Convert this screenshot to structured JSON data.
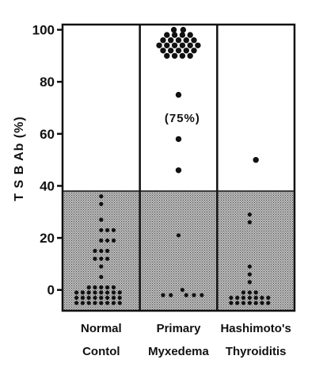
{
  "chart_data": {
    "type": "scatter",
    "ylabel": "T S B Ab (%)",
    "ylim": [
      -8,
      102
    ],
    "yticks": [
      "0",
      "20",
      "40",
      "60",
      "80",
      "100"
    ],
    "shaded_band": [
      -8,
      38
    ],
    "categories": [
      {
        "line1": "Normal",
        "line2": "Contol"
      },
      {
        "line1": "Primary",
        "line2": "Myxedema"
      },
      {
        "line1": "Hashimoto's",
        "line2": "Thyroiditis"
      }
    ],
    "annotations": [
      {
        "text": "(75%)",
        "category": 1,
        "y": 66
      }
    ],
    "series": [
      {
        "category": 0,
        "points": [
          {
            "x": 0.0,
            "y": 36
          },
          {
            "x": 0.0,
            "y": 33
          },
          {
            "x": 0.0,
            "y": 27
          },
          {
            "x": 0.0,
            "y": 23
          },
          {
            "x": 0.08,
            "y": 23
          },
          {
            "x": 0.16,
            "y": 23
          },
          {
            "x": 0.0,
            "y": 19
          },
          {
            "x": 0.08,
            "y": 19
          },
          {
            "x": 0.16,
            "y": 19
          },
          {
            "x": -0.08,
            "y": 15
          },
          {
            "x": 0.0,
            "y": 15
          },
          {
            "x": 0.08,
            "y": 15
          },
          {
            "x": -0.08,
            "y": 12
          },
          {
            "x": 0.0,
            "y": 12
          },
          {
            "x": 0.08,
            "y": 12
          },
          {
            "x": 0.0,
            "y": 9
          },
          {
            "x": 0.0,
            "y": 5
          },
          {
            "x": -0.16,
            "y": 1
          },
          {
            "x": -0.08,
            "y": 1
          },
          {
            "x": 0.0,
            "y": 1
          },
          {
            "x": 0.08,
            "y": 1
          },
          {
            "x": 0.16,
            "y": 1
          },
          {
            "x": -0.32,
            "y": -1
          },
          {
            "x": -0.24,
            "y": -1
          },
          {
            "x": -0.16,
            "y": -1
          },
          {
            "x": -0.08,
            "y": -1
          },
          {
            "x": 0.0,
            "y": -1
          },
          {
            "x": 0.08,
            "y": -1
          },
          {
            "x": 0.16,
            "y": -1
          },
          {
            "x": 0.24,
            "y": -1
          },
          {
            "x": -0.32,
            "y": -3
          },
          {
            "x": -0.24,
            "y": -3
          },
          {
            "x": -0.16,
            "y": -3
          },
          {
            "x": -0.08,
            "y": -3
          },
          {
            "x": 0.0,
            "y": -3
          },
          {
            "x": 0.08,
            "y": -3
          },
          {
            "x": 0.16,
            "y": -3
          },
          {
            "x": 0.24,
            "y": -3
          },
          {
            "x": -0.32,
            "y": -5
          },
          {
            "x": -0.24,
            "y": -5
          },
          {
            "x": -0.16,
            "y": -5
          },
          {
            "x": -0.08,
            "y": -5
          },
          {
            "x": 0.0,
            "y": -5
          },
          {
            "x": 0.08,
            "y": -5
          },
          {
            "x": 0.16,
            "y": -5
          },
          {
            "x": 0.24,
            "y": -5
          }
        ]
      },
      {
        "category": 1,
        "points": [
          {
            "x": -0.06,
            "y": 100
          },
          {
            "x": 0.06,
            "y": 100
          },
          {
            "x": -0.15,
            "y": 98
          },
          {
            "x": -0.05,
            "y": 98
          },
          {
            "x": 0.05,
            "y": 98
          },
          {
            "x": 0.15,
            "y": 98
          },
          {
            "x": -0.2,
            "y": 96
          },
          {
            "x": -0.1,
            "y": 96
          },
          {
            "x": 0.0,
            "y": 96
          },
          {
            "x": 0.1,
            "y": 96
          },
          {
            "x": 0.2,
            "y": 96
          },
          {
            "x": -0.25,
            "y": 94
          },
          {
            "x": -0.15,
            "y": 94
          },
          {
            "x": -0.05,
            "y": 94
          },
          {
            "x": 0.05,
            "y": 94
          },
          {
            "x": 0.15,
            "y": 94
          },
          {
            "x": 0.25,
            "y": 94
          },
          {
            "x": -0.2,
            "y": 92
          },
          {
            "x": -0.1,
            "y": 92
          },
          {
            "x": 0.0,
            "y": 92
          },
          {
            "x": 0.1,
            "y": 92
          },
          {
            "x": 0.2,
            "y": 92
          },
          {
            "x": -0.15,
            "y": 90
          },
          {
            "x": -0.05,
            "y": 90
          },
          {
            "x": 0.05,
            "y": 90
          },
          {
            "x": 0.15,
            "y": 90
          },
          {
            "x": 0.0,
            "y": 75
          },
          {
            "x": 0.0,
            "y": 58
          },
          {
            "x": 0.0,
            "y": 46
          },
          {
            "x": 0.0,
            "y": 21
          },
          {
            "x": 0.05,
            "y": 0
          },
          {
            "x": -0.2,
            "y": -2
          },
          {
            "x": -0.1,
            "y": -2
          },
          {
            "x": 0.1,
            "y": -2
          },
          {
            "x": 0.2,
            "y": -2
          },
          {
            "x": 0.3,
            "y": -2
          }
        ]
      },
      {
        "category": 2,
        "points": [
          {
            "x": 0.0,
            "y": 50
          },
          {
            "x": -0.08,
            "y": 29
          },
          {
            "x": -0.08,
            "y": 26
          },
          {
            "x": -0.08,
            "y": 9
          },
          {
            "x": -0.08,
            "y": 6
          },
          {
            "x": -0.08,
            "y": 3
          },
          {
            "x": -0.16,
            "y": -1
          },
          {
            "x": -0.08,
            "y": -1
          },
          {
            "x": 0.0,
            "y": -1
          },
          {
            "x": -0.32,
            "y": -3
          },
          {
            "x": -0.24,
            "y": -3
          },
          {
            "x": -0.16,
            "y": -3
          },
          {
            "x": -0.08,
            "y": -3
          },
          {
            "x": 0.0,
            "y": -3
          },
          {
            "x": 0.08,
            "y": -3
          },
          {
            "x": 0.16,
            "y": -3
          },
          {
            "x": -0.32,
            "y": -5
          },
          {
            "x": -0.24,
            "y": -5
          },
          {
            "x": -0.16,
            "y": -5
          },
          {
            "x": -0.08,
            "y": -5
          },
          {
            "x": 0.0,
            "y": -5
          },
          {
            "x": 0.08,
            "y": -5
          },
          {
            "x": 0.16,
            "y": -5
          }
        ]
      }
    ]
  }
}
